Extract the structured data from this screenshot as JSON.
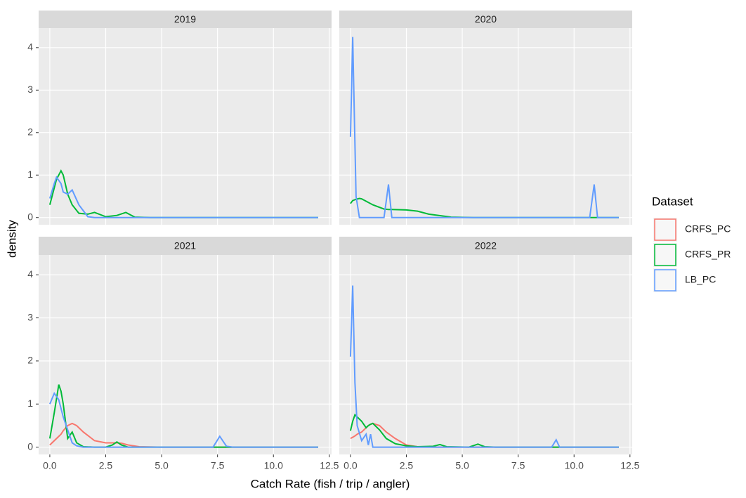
{
  "chart_data": {
    "type": "line",
    "xlabel": "Catch Rate (fish / trip / angler)",
    "ylabel": "density",
    "legend_title": "Dataset",
    "legend": [
      {
        "name": "CRFS_PC",
        "color": "#F8766D"
      },
      {
        "name": "CRFS_PR",
        "color": "#00BA38"
      },
      {
        "name": "LB_PC",
        "color": "#619CFF"
      }
    ],
    "grid": true,
    "xlim": [
      -0.5,
      12.6
    ],
    "xticks": [
      {
        "value": 0,
        "label": "0.0"
      },
      {
        "value": 2.5,
        "label": "2.5"
      },
      {
        "value": 5,
        "label": "5.0"
      },
      {
        "value": 7.5,
        "label": "7.5"
      },
      {
        "value": 10,
        "label": "10.0"
      },
      {
        "value": 12.5,
        "label": "12.5"
      }
    ],
    "ylim": [
      -0.17,
      4.46
    ],
    "yticks": [
      0,
      1,
      2,
      3,
      4
    ],
    "facets": [
      {
        "title": "2019",
        "x": [
          0,
          0.2,
          0.3,
          0.5,
          0.6,
          0.8,
          1.0,
          1.3,
          1.7,
          2.0,
          2.5,
          3.0,
          3.4,
          3.8,
          4.5,
          12
        ],
        "series": [
          {
            "name": "CRFS_PR",
            "color": "#00BA38",
            "values": [
              0.3,
              0.7,
              0.9,
              1.1,
              1.0,
              0.55,
              0.3,
              0.1,
              0.08,
              0.12,
              0.02,
              0.05,
              0.12,
              0.01,
              0,
              0
            ]
          },
          {
            "name": "LB_PC",
            "color": "#619CFF",
            "values": [
              0.45,
              0.8,
              0.95,
              0.8,
              0.6,
              0.55,
              0.65,
              0.3,
              0.02,
              0,
              0,
              0,
              0,
              0,
              0,
              0
            ]
          }
        ]
      },
      {
        "title": "2020",
        "x": [
          0,
          0.1,
          0.25,
          0.4,
          0.5,
          1.0,
          1.5,
          1.7,
          1.85,
          2.5,
          3.0,
          3.5,
          4.5,
          5.5,
          10.7,
          10.9,
          11.05,
          12
        ],
        "series": [
          {
            "name": "CRFS_PR",
            "color": "#00BA38",
            "values": [
              0.33,
              0.4,
              0.43,
              0.45,
              0.44,
              0.3,
              0.2,
              0.19,
              0.19,
              0.18,
              0.15,
              0.08,
              0.01,
              0,
              0,
              0,
              0,
              0
            ]
          },
          {
            "name": "LB_PC",
            "color": "#619CFF",
            "values": [
              1.9,
              4.25,
              0.5,
              0,
              0,
              0,
              0,
              0.78,
              0,
              0,
              0,
              0,
              0,
              0,
              0,
              0.78,
              0,
              0
            ]
          }
        ]
      },
      {
        "title": "2021",
        "x": [
          0,
          0.2,
          0.4,
          0.5,
          0.6,
          0.8,
          1.0,
          1.2,
          1.5,
          2.0,
          2.5,
          2.8,
          3.0,
          3.2,
          3.5,
          4.0,
          5.0,
          7.3,
          7.6,
          7.9,
          8.2,
          12
        ],
        "series": [
          {
            "name": "CRFS_PC",
            "color": "#F8766D",
            "values": [
              0.05,
              0.15,
              0.25,
              0.3,
              0.38,
              0.5,
              0.55,
              0.5,
              0.35,
              0.15,
              0.1,
              0.1,
              0.1,
              0.09,
              0.05,
              0.01,
              0,
              0,
              0,
              0,
              0,
              0
            ]
          },
          {
            "name": "CRFS_PR",
            "color": "#00BA38",
            "values": [
              0.2,
              0.8,
              1.45,
              1.3,
              1.0,
              0.2,
              0.35,
              0.1,
              0.01,
              0,
              0,
              0.05,
              0.12,
              0.05,
              0,
              0,
              0,
              0,
              0,
              0,
              0,
              0
            ]
          },
          {
            "name": "LB_PC",
            "color": "#619CFF",
            "values": [
              1.0,
              1.25,
              1.1,
              0.9,
              0.7,
              0.4,
              0.1,
              0.03,
              0,
              0,
              0,
              0,
              0,
              0,
              0,
              0,
              0,
              0,
              0.25,
              0.02,
              0,
              0
            ]
          }
        ]
      },
      {
        "title": "2022",
        "x": [
          0,
          0.1,
          0.2,
          0.3,
          0.5,
          0.7,
          0.8,
          0.9,
          1.0,
          1.3,
          1.6,
          2.0,
          2.5,
          3.0,
          3.7,
          4.0,
          4.3,
          5.3,
          5.7,
          6.0,
          6.5,
          9.0,
          9.2,
          9.35,
          12
        ],
        "series": [
          {
            "name": "CRFS_PC",
            "color": "#F8766D",
            "values": [
              0.2,
              0.23,
              0.26,
              0.3,
              0.35,
              0.45,
              0.5,
              0.53,
              0.55,
              0.5,
              0.35,
              0.2,
              0.05,
              0.01,
              0,
              0,
              0,
              0,
              0,
              0,
              0,
              0,
              0,
              0,
              0
            ]
          },
          {
            "name": "CRFS_PR",
            "color": "#00BA38",
            "values": [
              0.38,
              0.6,
              0.75,
              0.7,
              0.6,
              0.45,
              0.5,
              0.53,
              0.55,
              0.4,
              0.2,
              0.08,
              0.03,
              0.01,
              0.02,
              0.06,
              0.01,
              0,
              0.07,
              0.01,
              0,
              0,
              0,
              0,
              0
            ]
          },
          {
            "name": "LB_PC",
            "color": "#619CFF",
            "values": [
              2.1,
              3.75,
              1.5,
              0.5,
              0.15,
              0.3,
              0.05,
              0.3,
              0,
              0,
              0,
              0,
              0,
              0,
              0,
              0,
              0,
              0,
              0,
              0,
              0,
              0,
              0.17,
              0,
              0
            ]
          }
        ]
      }
    ]
  }
}
